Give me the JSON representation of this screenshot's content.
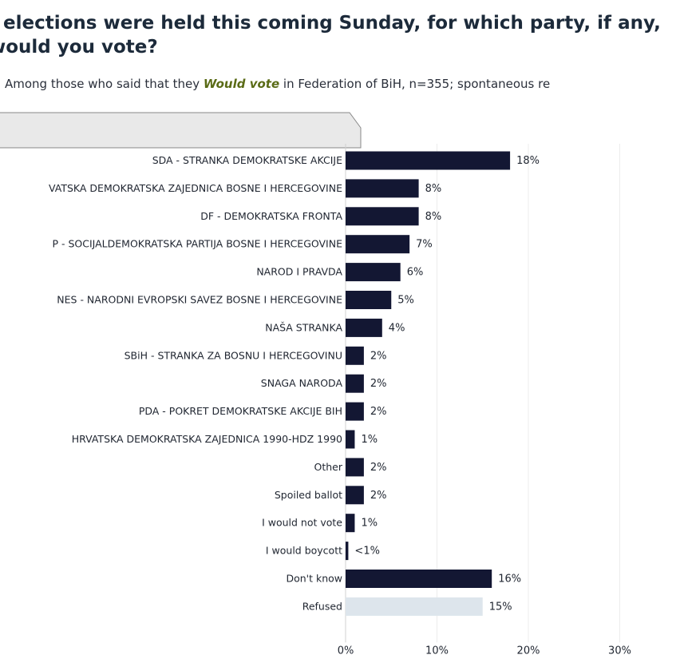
{
  "title_text": "f elections were held this coming Sunday, for which party, if any, would you vote?",
  "subtitle": {
    "prefix": "Among those who said that they ",
    "emphasis": "Would vote",
    "suffix": " in Federation of BiH, n=355; spontaneous re"
  },
  "colors": {
    "bar": "#131733",
    "bar_refused": "#dde5ec",
    "title": "#1c2a3a",
    "emphasis": "#5a6b16"
  },
  "chart_data": {
    "type": "bar",
    "orientation": "horizontal",
    "categories": [
      "SDA - STRANKA DEMOKRATSKE AKCIJE",
      "VATSKA DEMOKRATSKA ZAJEDNICA BOSNE I HERCEGOVINE",
      "DF - DEMOKRATSKA FRONTA",
      "P - SOCIJALDEMOKRATSKA PARTIJA BOSNE I HERCEGOVINE",
      "NAROD I PRAVDA",
      "NES - NARODNI EVROPSKI SAVEZ BOSNE I HERCEGOVINE",
      "NAŠA STRANKA",
      "SBiH - STRANKA ZA BOSNU I HERCEGOVINU",
      "SNAGA NARODA",
      "PDA - POKRET DEMOKRATSKE AKCIJE BIH",
      "HRVATSKA DEMOKRATSKA ZAJEDNICA 1990-HDZ 1990",
      "Other",
      "Spoiled ballot",
      "I would not vote",
      "I would boycott",
      "Don't know",
      "Refused"
    ],
    "values": [
      18,
      8,
      8,
      7,
      6,
      5,
      4,
      2,
      2,
      2,
      1,
      2,
      2,
      1,
      0.3,
      16,
      15
    ],
    "labels": [
      "18%",
      "8%",
      "8%",
      "7%",
      "6%",
      "5%",
      "4%",
      "2%",
      "2%",
      "2%",
      "1%",
      "2%",
      "2%",
      "1%",
      "<1%",
      "16%",
      "15%"
    ],
    "highlight_index": 16,
    "x_ticks": [
      0,
      10,
      20,
      30
    ],
    "x_tick_labels": [
      "0%",
      "10%",
      "20%",
      "30%"
    ],
    "xlim": [
      0,
      35
    ],
    "grid": true
  }
}
